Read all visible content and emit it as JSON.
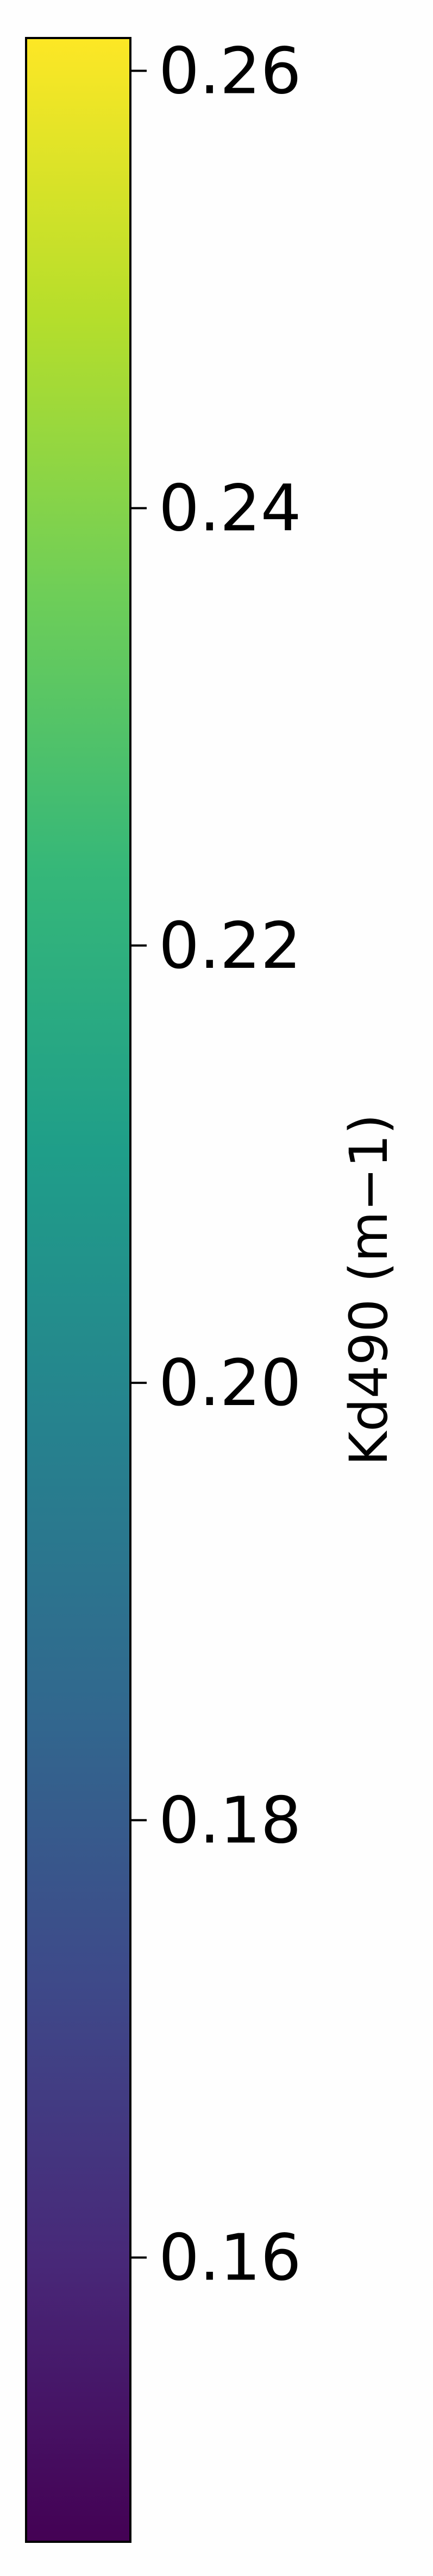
{
  "chart_data": {
    "type": "colorbar",
    "colormap": "viridis",
    "orientation": "vertical",
    "label": "Kd490 (m−1)",
    "vmin": 0.147,
    "vmax": 0.2615,
    "ticks": [
      {
        "value": 0.26,
        "label": "0.26"
      },
      {
        "value": 0.24,
        "label": "0.24"
      },
      {
        "value": 0.22,
        "label": "0.22"
      },
      {
        "value": 0.2,
        "label": "0.20"
      },
      {
        "value": 0.18,
        "label": "0.18"
      },
      {
        "value": 0.16,
        "label": "0.16"
      }
    ],
    "colors": [
      "#440154",
      "#482878",
      "#3e4989",
      "#31688e",
      "#26828e",
      "#1f9e89",
      "#35b779",
      "#6ece58",
      "#b5de2b",
      "#fde725"
    ]
  }
}
